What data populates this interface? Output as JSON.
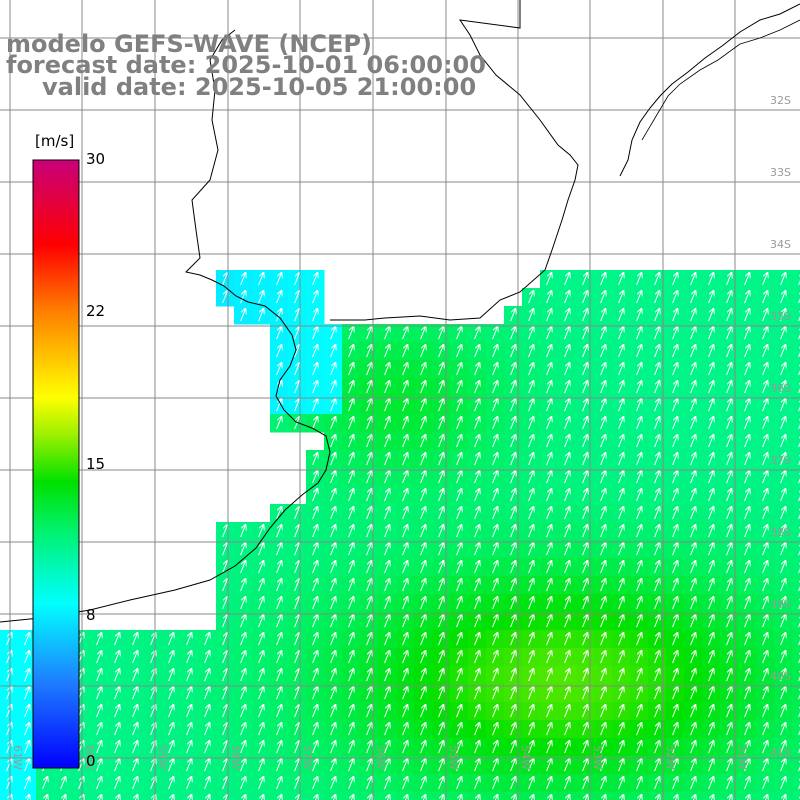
{
  "title": {
    "line1": "modelo GEFS-WAVE (NCEP)",
    "line2": "forecast date: 2025-10-01 06:00:00",
    "line3": "valid date: 2025-10-05 21:00:00"
  },
  "colorbar": {
    "unit": "[m/s]",
    "ticks": [
      "0",
      "8",
      "15",
      "22",
      "30"
    ],
    "min": 0,
    "max": 30
  },
  "axes": {
    "lon_labels": [
      "61W",
      "60W",
      "59W",
      "58W",
      "57W",
      "56W",
      "55W",
      "54W",
      "53W",
      "52W",
      "51W"
    ],
    "lat_labels": [
      "32S",
      "33S",
      "34S",
      "35S",
      "36S",
      "37S",
      "38S",
      "39S",
      "40S",
      "41S"
    ]
  },
  "colors": {
    "land": "#ffffff",
    "grid": "#888888",
    "coast": "#000000",
    "arrow": "#ffffff",
    "title": "#808080"
  }
}
